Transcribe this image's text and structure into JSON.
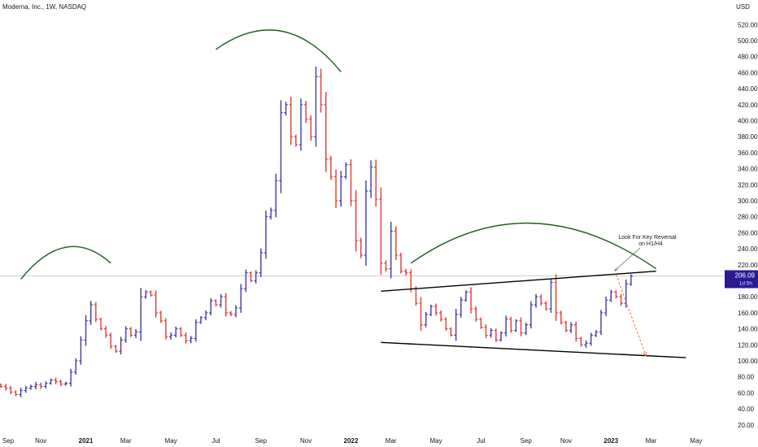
{
  "header": {
    "title": "Moderna, Inc., 1W, NASDAQ",
    "currency": "USD"
  },
  "colors": {
    "up": "#3f3ba8",
    "down": "#e53935",
    "arc": "#1b5e20",
    "trendline": "#000000",
    "projection": "#f4511e",
    "price_tag_bg": "#2b1a94"
  },
  "price_tag": {
    "value": "206.09",
    "countdown": "1d 5h"
  },
  "annotation": {
    "line1": "Look For Key Reversal",
    "line2": "on H1/H4"
  },
  "chart_data": {
    "type": "ohlc",
    "title": "Moderna, Inc., 1W, NASDAQ",
    "ylabel": "USD",
    "xlabel": "",
    "ylim": [
      20,
      540
    ],
    "y_ticks": [
      520,
      500,
      480,
      460,
      440,
      420,
      400,
      380,
      360,
      340,
      320,
      300,
      280,
      260,
      240,
      220,
      200,
      180,
      160,
      140,
      120,
      100,
      80,
      60,
      40,
      20
    ],
    "y_tick_labels": [
      "520.00",
      "500.00",
      "480.00",
      "460.00",
      "440.00",
      "420.00",
      "400.00",
      "380.00",
      "360.00",
      "340.00",
      "320.00",
      "300.00",
      "280.00",
      "260.00",
      "240.00",
      "220.00",
      "200.00",
      "180.00",
      "160.00",
      "140.00",
      "120.00",
      "100.00",
      "80.00",
      "60.00",
      "40.00",
      "20.00"
    ],
    "x_ticks": [
      {
        "label": "Sep",
        "bold": false,
        "week": -1
      },
      {
        "label": "Nov",
        "bold": false,
        "week": 8
      },
      {
        "label": "2021",
        "bold": true,
        "week": 17
      },
      {
        "label": "Mar",
        "bold": false,
        "week": 25
      },
      {
        "label": "May",
        "bold": false,
        "week": 34
      },
      {
        "label": "Jul",
        "bold": false,
        "week": 43
      },
      {
        "label": "Sep",
        "bold": false,
        "week": 52
      },
      {
        "label": "Nov",
        "bold": false,
        "week": 61
      },
      {
        "label": "2022",
        "bold": true,
        "week": 70
      },
      {
        "label": "Mar",
        "bold": false,
        "week": 78
      },
      {
        "label": "May",
        "bold": false,
        "week": 87
      },
      {
        "label": "Jul",
        "bold": false,
        "week": 96
      },
      {
        "label": "Sep",
        "bold": false,
        "week": 105
      },
      {
        "label": "Nov",
        "bold": false,
        "week": 113
      },
      {
        "label": "2023",
        "bold": true,
        "week": 122
      },
      {
        "label": "Mar",
        "bold": false,
        "week": 130
      },
      {
        "label": "May",
        "bold": false,
        "week": 139
      }
    ],
    "closes": [
      68,
      66,
      61,
      58,
      63,
      66,
      68,
      70,
      68,
      72,
      76,
      74,
      71,
      72,
      86,
      100,
      126,
      150,
      170,
      152,
      140,
      132,
      118,
      112,
      126,
      140,
      132,
      136,
      180,
      186,
      182,
      160,
      150,
      130,
      132,
      140,
      132,
      125,
      128,
      148,
      154,
      160,
      175,
      170,
      180,
      160,
      158,
      166,
      190,
      210,
      200,
      210,
      235,
      280,
      288,
      325,
      410,
      420,
      380,
      370,
      420,
      402,
      380,
      455,
      420,
      352,
      330,
      300,
      330,
      345,
      300,
      250,
      232,
      312,
      342,
      302,
      222,
      215,
      262,
      232,
      212,
      210,
      190,
      172,
      145,
      158,
      168,
      160,
      152,
      140,
      132,
      158,
      176,
      186,
      165,
      152,
      142,
      132,
      138,
      126,
      135,
      152,
      138,
      150,
      135,
      145,
      170,
      180,
      172,
      165,
      198,
      160,
      148,
      138,
      145,
      128,
      120,
      122,
      132,
      136,
      160,
      176,
      186,
      180,
      172,
      196,
      206
    ],
    "prev_close_start": 70,
    "arcs": [
      {
        "x1": 4,
        "y1": 202,
        "xm": 13,
        "ym": 242,
        "x2": 22,
        "y2": 222
      },
      {
        "x1": 43,
        "y1": 489,
        "xm": 56,
        "ym": 512,
        "x2": 68,
        "y2": 461
      },
      {
        "x1": 82,
        "y1": 222,
        "xm": 106,
        "ym": 272,
        "x2": 131,
        "y2": 215
      }
    ],
    "trendlines": [
      {
        "x1": 76,
        "y1": 187,
        "x2": 131,
        "y2": 212
      },
      {
        "x1": 76,
        "y1": 123,
        "x2": 137,
        "y2": 104
      }
    ],
    "projection": {
      "x1": 123,
      "y1": 208,
      "x2": 129,
      "y2": 106
    },
    "current_price": 206.09
  }
}
